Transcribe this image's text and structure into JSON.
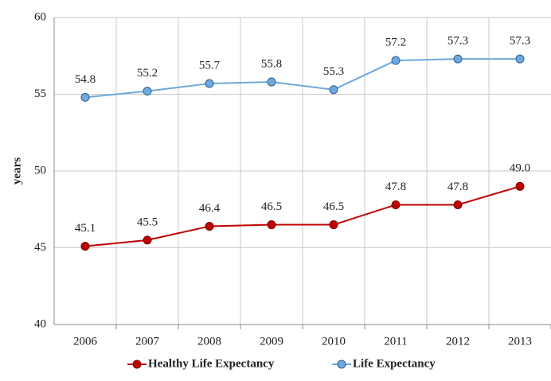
{
  "chart_data": {
    "type": "line",
    "y_label": "years",
    "categories": [
      "2006",
      "2007",
      "2008",
      "2009",
      "2010",
      "2011",
      "2012",
      "2013"
    ],
    "series": [
      {
        "name": "Healthy Life Expectancy",
        "color": "#c00000",
        "values": [
          45.1,
          45.5,
          46.4,
          46.5,
          46.5,
          47.8,
          47.8,
          49.0
        ],
        "value_labels": [
          "45.1",
          "45.5",
          "46.4",
          "46.5",
          "46.5",
          "47.8",
          "47.8",
          "49.0"
        ]
      },
      {
        "name": "Life Expectancy",
        "color": "#6fa8dc",
        "values": [
          54.8,
          55.2,
          55.7,
          55.8,
          55.3,
          57.2,
          57.3,
          57.3
        ],
        "value_labels": [
          "54.8",
          "55.2",
          "55.7",
          "55.8",
          "55.3",
          "57.2",
          "57.3",
          "57.3"
        ]
      }
    ],
    "ylim": [
      40,
      60
    ],
    "yticks": [
      40,
      45,
      50,
      55,
      60
    ],
    "grid": true,
    "legend": "bottom"
  }
}
